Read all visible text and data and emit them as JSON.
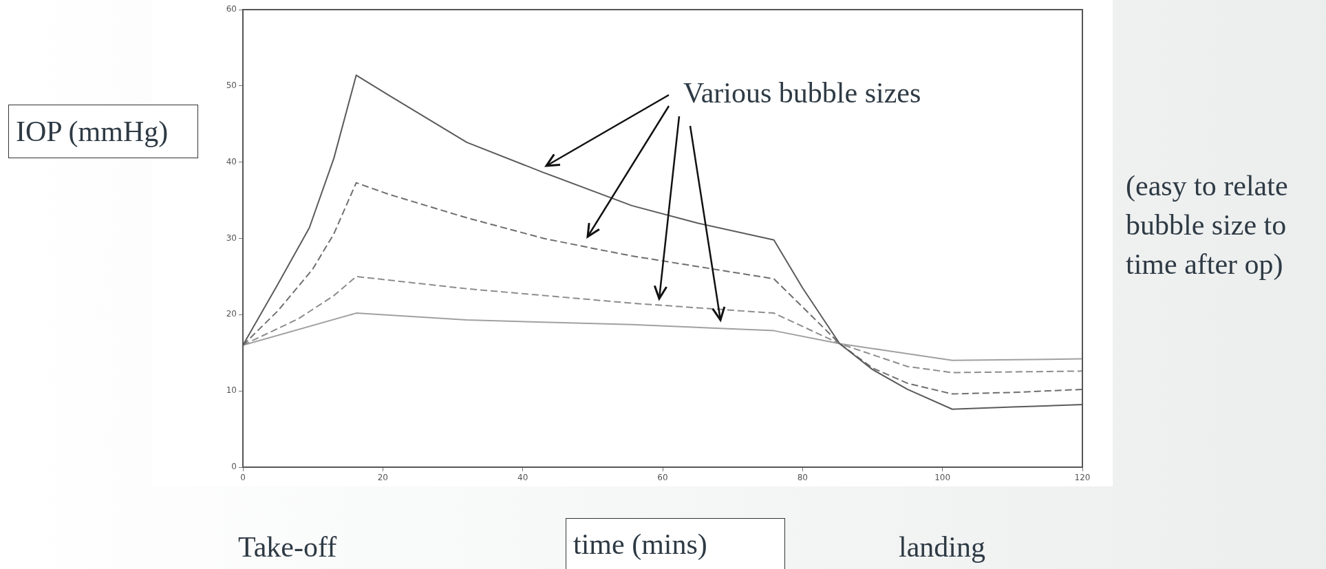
{
  "chart_data": {
    "type": "line",
    "xlabel": "time (mins)",
    "xlim": [
      0,
      120
    ],
    "xticks": [
      0,
      20,
      40,
      60,
      80,
      100,
      120
    ],
    "ylim": [
      0,
      60
    ],
    "yticks": [
      0,
      10,
      20,
      30,
      40,
      50,
      60
    ],
    "grid": false,
    "legend": false,
    "marker": "none",
    "series": [
      {
        "color": "#5a5a5a",
        "line_style": "solid",
        "x": [
          0,
          5,
          9.5,
          13,
          16.2,
          20.8,
          32,
          42.8,
          55.6,
          65,
          75.9,
          80,
          85.3,
          90,
          95,
          101.4,
          110,
          120
        ],
        "values": [
          16,
          24,
          31.4,
          40.5,
          51.4,
          48.8,
          42.6,
          38.7,
          34.3,
          32,
          29.8,
          23.5,
          16.2,
          12.8,
          10.2,
          7.6,
          7.9,
          8.2
        ]
      },
      {
        "color": "#6e6e6e",
        "line_style": "dashed",
        "x": [
          0,
          5,
          10,
          13,
          16.2,
          20.8,
          32,
          43,
          50,
          55.6,
          75.9,
          80,
          85.3,
          90,
          95,
          101.4,
          110,
          120
        ],
        "values": [
          16,
          20.5,
          26,
          30.6,
          37.3,
          35.8,
          32.7,
          30,
          28.7,
          27.7,
          24.7,
          21,
          16.2,
          13,
          11,
          9.6,
          9.8,
          10.2
        ]
      },
      {
        "color": "#8c8c8c",
        "line_style": "dashed",
        "x": [
          0,
          8,
          13,
          16.2,
          32,
          55.6,
          75.9,
          85.3,
          95,
          101.4,
          120
        ],
        "values": [
          16,
          19.5,
          22.5,
          25,
          23.4,
          21.5,
          20.2,
          16.2,
          13.2,
          12.4,
          12.6
        ]
      },
      {
        "color": "#a0a0a0",
        "line_style": "solid",
        "x": [
          0,
          16.2,
          32,
          55.6,
          75.9,
          85.3,
          101.4,
          120
        ],
        "values": [
          16,
          20.2,
          19.3,
          18.7,
          17.9,
          16.2,
          14,
          14.2
        ]
      }
    ],
    "annotations": [
      "IOP (mmHg)",
      "Various bubble sizes",
      "(easy to relate bubble size to time after op)",
      "Take-off",
      "landing"
    ]
  }
}
